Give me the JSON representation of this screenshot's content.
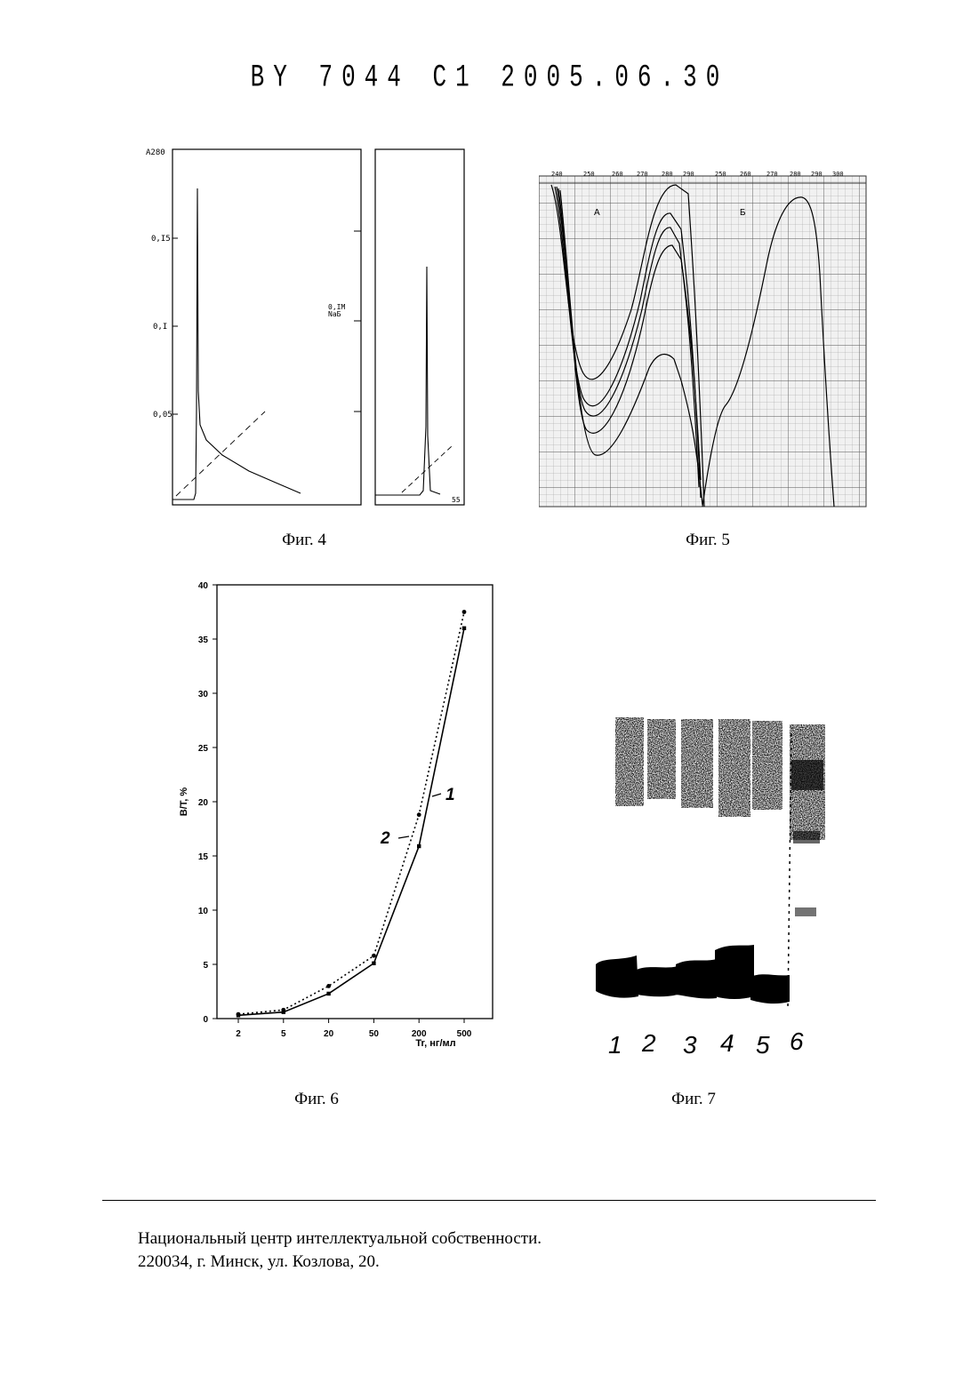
{
  "header": {
    "text": "BY 7044 C1 2005.06.30"
  },
  "figures": {
    "fig4": {
      "caption": "Фиг. 4",
      "y_label": "A280",
      "y_ticks": [
        "0,I5",
        "0,I",
        "0,05"
      ],
      "side_label_1": "0,IM",
      "side_label_2": "NaБ",
      "corner_mark": "55"
    },
    "fig5": {
      "caption": "Фиг. 5",
      "top_ticks_left": [
        "240",
        "250",
        "260",
        "270",
        "280",
        "290"
      ],
      "top_ticks_right": [
        "250",
        "260",
        "270",
        "280",
        "290",
        "300"
      ],
      "panel_label_a": "А",
      "panel_label_b": "Б"
    },
    "fig6": {
      "caption": "Фиг. 6",
      "xlabel": "Tr, нг/мл",
      "ylabel": "B/T, %",
      "curve_label_1": "1",
      "curve_label_2": "2"
    },
    "fig7": {
      "caption": "Фиг. 7",
      "lanes": [
        "1",
        "2",
        "3",
        "4",
        "5",
        "6"
      ]
    }
  },
  "chart_data": {
    "type": "line",
    "categories": [
      "2",
      "5",
      "20",
      "50",
      "200",
      "500"
    ],
    "series": [
      {
        "name": "1",
        "values": [
          0.4,
          0.8,
          3.0,
          5.8,
          18.8,
          37.5
        ]
      },
      {
        "name": "2",
        "values": [
          0.3,
          0.6,
          2.3,
          5.1,
          15.9,
          36.0
        ]
      }
    ],
    "xlabel": "Tr, нг/мл",
    "ylabel": "B/T, %",
    "yticks": [
      0,
      5,
      10,
      15,
      20,
      25,
      30,
      35,
      40
    ],
    "ylim": [
      0,
      40
    ]
  },
  "footer": {
    "line1": "Национальный центр интеллектуальной собственности.",
    "line2": "220034, г. Минск, ул. Козлова, 20."
  }
}
